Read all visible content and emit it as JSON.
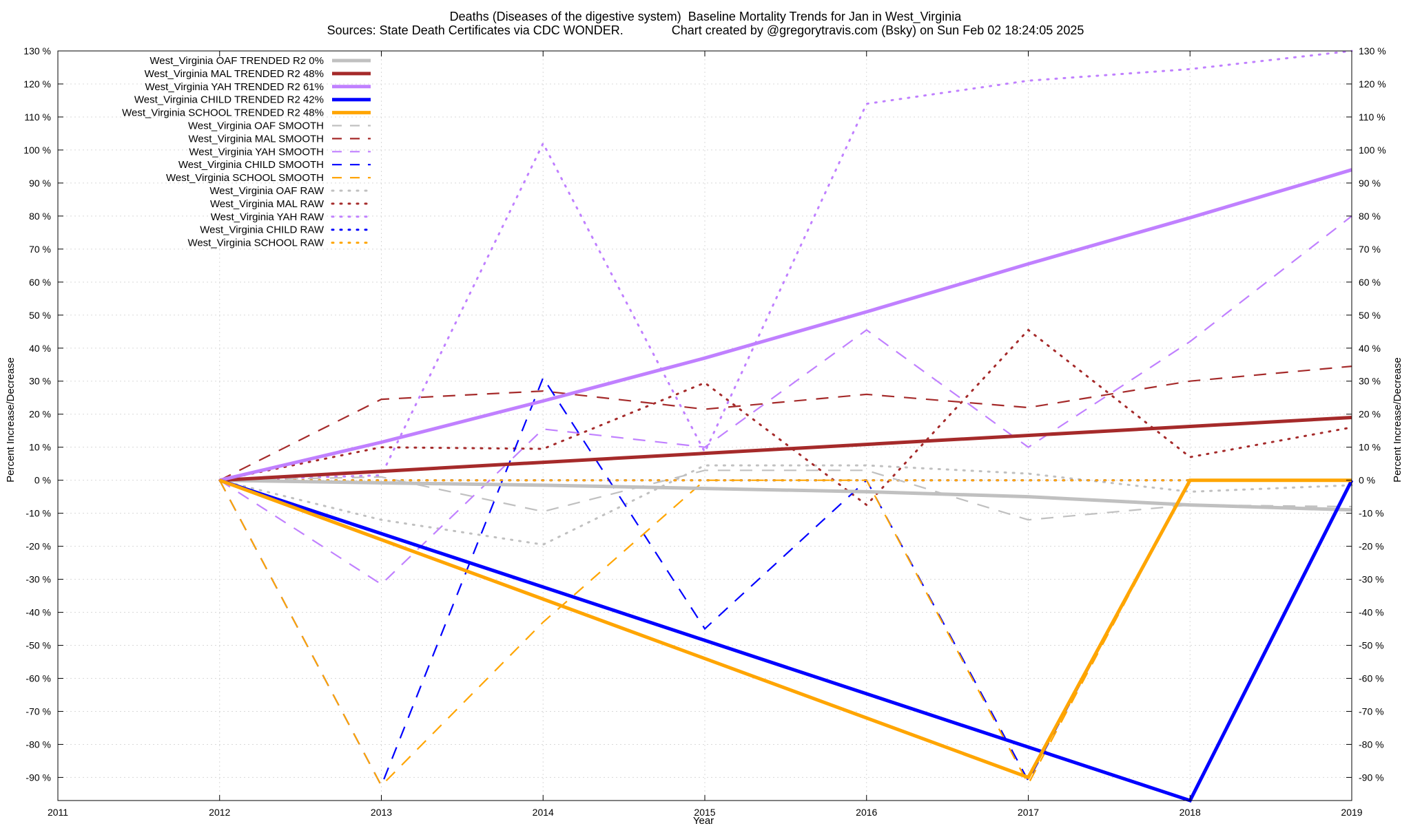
{
  "chart_data": {
    "type": "line",
    "title": "Deaths (Diseases of the digestive system)  Baseline Mortality Trends for Jan in West_Virginia",
    "subtitle": "Sources: State Death Certificates via CDC WONDER.              Chart created by @gregorytravis.com (Bsky) on Sun Feb 02 18:24:05 2025",
    "xlabel": "Year",
    "ylabel": "Percent Increase/Decrease",
    "y2label": "Percent Increase/Decrease",
    "xlim": [
      2011,
      2019
    ],
    "ylim": [
      -97,
      130
    ],
    "x_ticks": [
      "2011",
      "2012",
      "2013",
      "2014",
      "2015",
      "2016",
      "2017",
      "2018",
      "2019"
    ],
    "y_ticks": [
      "130 %",
      "120 %",
      "110 %",
      "100 %",
      "90 %",
      "80 %",
      "70 %",
      "60 %",
      "50 %",
      "40 %",
      "30 %",
      "20 %",
      "10 %",
      "0 %",
      "-10 %",
      "-20 %",
      "-30 %",
      "-40 %",
      "-50 %",
      "-60 %",
      "-70 %",
      "-80 %",
      "-90 %"
    ],
    "grid": true,
    "legend_position": "top-left",
    "series": [
      {
        "name": "West_Virginia OAF TRENDED R2  0%",
        "color": "#c0c0c0",
        "style": "solid",
        "x": [
          2012,
          2013,
          2014,
          2015,
          2016,
          2017,
          2018,
          2019
        ],
        "y": [
          0,
          -0.8,
          -1.5,
          -2.5,
          -3.5,
          -5,
          -7.5,
          -9
        ]
      },
      {
        "name": "West_Virginia MAL TRENDED R2  48%",
        "color": "#a52a2a",
        "style": "solid",
        "x": [
          2012,
          2019
        ],
        "y": [
          0,
          19
        ]
      },
      {
        "name": "West_Virginia YAH TRENDED R2  61%",
        "color": "#c080ff",
        "style": "solid",
        "x": [
          2012,
          2013,
          2014,
          2015,
          2016,
          2017,
          2018,
          2019
        ],
        "y": [
          0,
          11.5,
          24,
          37,
          51,
          65.5,
          79.5,
          94
        ]
      },
      {
        "name": "West_Virginia CHILD TRENDED R2  42%",
        "color": "#0000ff",
        "style": "solid",
        "x": [
          2012,
          2018,
          2019
        ],
        "y": [
          0,
          -97,
          0
        ]
      },
      {
        "name": "West_Virginia SCHOOL TRENDED R2  48%",
        "color": "#ffa500",
        "style": "solid",
        "x": [
          2012,
          2017,
          2018,
          2019
        ],
        "y": [
          0,
          -90,
          0,
          0
        ]
      },
      {
        "name": "West_Virginia OAF SMOOTH",
        "color": "#c0c0c0",
        "style": "dashed",
        "x": [
          2012,
          2013,
          2014,
          2015,
          2016,
          2017,
          2018,
          2019
        ],
        "y": [
          0,
          1,
          -9.5,
          3,
          3,
          -12,
          -7.5,
          -8
        ]
      },
      {
        "name": "West_Virginia MAL SMOOTH",
        "color": "#a52a2a",
        "style": "dashed",
        "x": [
          2012,
          2013,
          2014,
          2015,
          2016,
          2017,
          2018,
          2019
        ],
        "y": [
          0,
          24.5,
          27,
          21.5,
          26,
          22,
          30,
          34.5
        ]
      },
      {
        "name": "West_Virginia YAH SMOOTH",
        "color": "#c080ff",
        "style": "dashed",
        "x": [
          2012,
          2013,
          2014,
          2015,
          2016,
          2017,
          2018,
          2019
        ],
        "y": [
          0,
          -31.5,
          15.5,
          10,
          45.5,
          10,
          42,
          80
        ]
      },
      {
        "name": "West_Virginia CHILD SMOOTH",
        "color": "#0000ff",
        "style": "dashed",
        "x": [
          2012,
          2013,
          2014,
          2015,
          2016,
          2017,
          2018,
          2019
        ],
        "y": [
          0,
          -92.5,
          31,
          -45,
          0,
          -91,
          0,
          0
        ]
      },
      {
        "name": "West_Virginia SCHOOL SMOOTH",
        "color": "#ffa500",
        "style": "dashed",
        "x": [
          2012,
          2013,
          2014,
          2015,
          2016,
          2017,
          2018,
          2019
        ],
        "y": [
          0,
          -92.5,
          -43,
          0,
          0,
          -92,
          0,
          0
        ]
      },
      {
        "name": "West_Virginia OAF RAW",
        "color": "#c0c0c0",
        "style": "dotted",
        "x": [
          2012,
          2013,
          2014,
          2015,
          2016,
          2017,
          2018,
          2019
        ],
        "y": [
          0,
          -12,
          -19.5,
          4.5,
          4.5,
          2,
          -3.5,
          -1.5
        ]
      },
      {
        "name": "West_Virginia MAL RAW",
        "color": "#a52a2a",
        "style": "dotted",
        "x": [
          2012,
          2013,
          2014,
          2015,
          2016,
          2017,
          2018,
          2019
        ],
        "y": [
          0,
          10,
          9.5,
          29.5,
          -7.5,
          45.5,
          7,
          16
        ]
      },
      {
        "name": "West_Virginia YAH RAW",
        "color": "#c080ff",
        "style": "dotted",
        "x": [
          2012,
          2013,
          2014,
          2015,
          2016,
          2017,
          2018,
          2019
        ],
        "y": [
          0,
          1.5,
          102,
          8.5,
          114,
          121,
          124.5,
          130
        ]
      },
      {
        "name": "West_Virginia CHILD RAW",
        "color": "#0000ff",
        "style": "dotted",
        "x": [
          2012,
          2013,
          2014,
          2015,
          2016,
          2017,
          2018,
          2019
        ],
        "y": [
          0,
          0,
          0,
          0,
          0,
          0,
          0,
          0
        ]
      },
      {
        "name": "West_Virginia SCHOOL RAW",
        "color": "#ffa500",
        "style": "dotted",
        "x": [
          2012,
          2013,
          2014,
          2015,
          2016,
          2017,
          2018,
          2019
        ],
        "y": [
          0,
          0,
          0,
          0,
          0,
          0,
          0,
          0
        ]
      }
    ]
  }
}
